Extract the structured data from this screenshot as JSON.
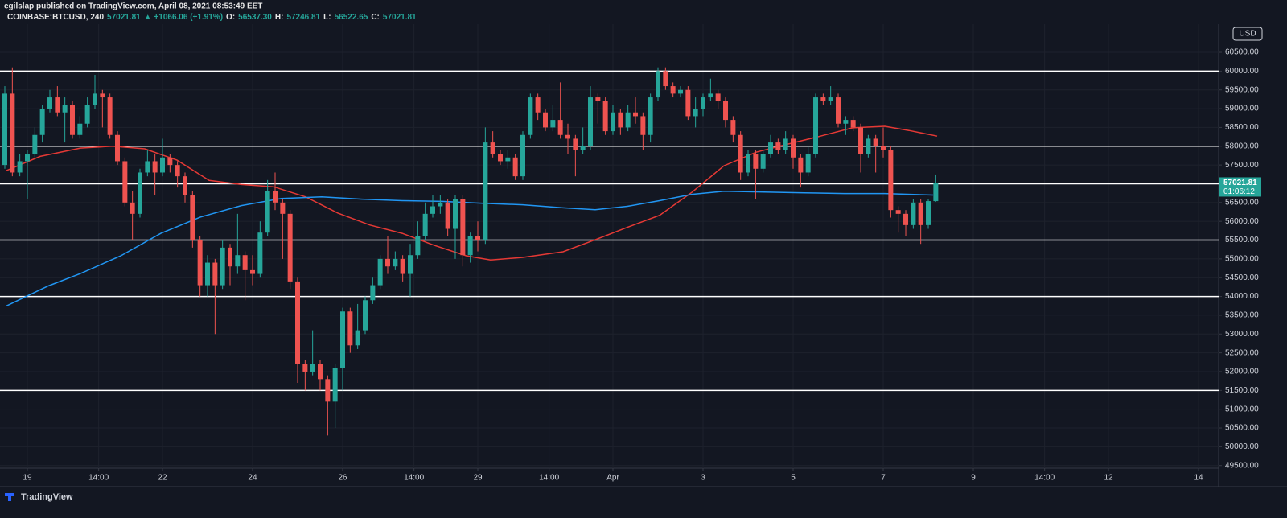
{
  "header": {
    "publisher": "egilslap published on TradingView.com, April 08, 2021 08:53:49 EET",
    "symbol": "COINBASE:BTCUSD, 240",
    "last": "57021.81",
    "change": "▲ +1066.06 (+1.91%)",
    "ohlc": [
      {
        "label": "O:",
        "value": "56537.30"
      },
      {
        "label": "H:",
        "value": "57246.81"
      },
      {
        "label": "L:",
        "value": "56522.65"
      },
      {
        "label": "C:",
        "value": "57021.81"
      }
    ]
  },
  "footer": {
    "brand": "TradingView"
  },
  "chart_data": {
    "type": "candlestick",
    "currency": "USD",
    "countdown": "01:06:12",
    "up_color": "#26a69a",
    "down_color": "#ef5350",
    "level_color": "#ffffff",
    "xlim": [
      18.393,
      45.446
    ],
    "ylim": [
      49430,
      61250
    ],
    "xticks": [
      19,
      {
        "value": 20.583,
        "label": "14:00"
      },
      22,
      24,
      26,
      {
        "value": 27.583,
        "label": "14:00"
      },
      29,
      {
        "value": 30.583,
        "label": "14:00"
      },
      {
        "value": 32,
        "label": "Apr"
      },
      {
        "value": 34,
        "label": "3"
      },
      {
        "value": 36,
        "label": "5"
      },
      {
        "value": 38,
        "label": "7"
      },
      {
        "value": 40,
        "label": "9"
      },
      {
        "value": 41.583,
        "label": "14:00"
      },
      {
        "value": 43,
        "label": "12"
      },
      {
        "value": 45,
        "label": "14"
      }
    ],
    "yticks": [
      {
        "value": 49500,
        "label": "49500.00"
      },
      {
        "value": 50000,
        "label": "50000.00"
      },
      {
        "value": 50500,
        "label": "50500.00"
      },
      {
        "value": 51000,
        "label": "51000.00"
      },
      {
        "value": 51500,
        "label": "51500.00"
      },
      {
        "value": 52000,
        "label": "52000.00"
      },
      {
        "value": 52500,
        "label": "52500.00"
      },
      {
        "value": 53000,
        "label": "53000.00"
      },
      {
        "value": 53500,
        "label": "53500.00"
      },
      {
        "value": 54000,
        "label": "54000.00"
      },
      {
        "value": 54500,
        "label": "54500.00"
      },
      {
        "value": 55000,
        "label": "55000.00"
      },
      {
        "value": 55500,
        "label": "55500.00"
      },
      {
        "value": 56000,
        "label": "56000.00"
      },
      {
        "value": 56500,
        "label": "56500.00"
      },
      {
        "value": 57000,
        "label": "57000.00"
      },
      {
        "value": 57500,
        "label": "57500.00"
      },
      {
        "value": 58000,
        "label": "58000.00"
      },
      {
        "value": 58500,
        "label": "58500.00"
      },
      {
        "value": 59000,
        "label": "59000.00"
      },
      {
        "value": 59500,
        "label": "59500.00"
      },
      {
        "value": 60000,
        "label": "60000.00"
      },
      {
        "value": 60500,
        "label": "60500.00"
      }
    ],
    "levels": [
      60000,
      58000,
      57000,
      55500,
      54000,
      51500
    ],
    "x": [
      18.5,
      18.667,
      18.833,
      19,
      19.167,
      19.333,
      19.5,
      19.667,
      19.833,
      20,
      20.167,
      20.333,
      20.5,
      20.667,
      20.833,
      21,
      21.167,
      21.333,
      21.5,
      21.667,
      21.833,
      22,
      22.167,
      22.333,
      22.5,
      22.667,
      22.833,
      23,
      23.167,
      23.333,
      23.5,
      23.667,
      23.833,
      24,
      24.167,
      24.333,
      24.5,
      24.667,
      24.833,
      25,
      25.167,
      25.333,
      25.5,
      25.667,
      25.833,
      26,
      26.167,
      26.333,
      26.5,
      26.667,
      26.833,
      27,
      27.167,
      27.333,
      27.5,
      27.667,
      27.833,
      28,
      28.167,
      28.333,
      28.5,
      28.667,
      28.833,
      29,
      29.167,
      29.333,
      29.5,
      29.667,
      29.833,
      30,
      30.167,
      30.333,
      30.5,
      30.667,
      30.833,
      31,
      31.167,
      31.333,
      31.5,
      31.667,
      31.833,
      32,
      32.167,
      32.333,
      32.5,
      32.667,
      32.833,
      33,
      33.167,
      33.333,
      33.5,
      33.667,
      33.833,
      34,
      34.167,
      34.333,
      34.5,
      34.667,
      34.833,
      35,
      35.167,
      35.333,
      35.5,
      35.667,
      35.833,
      36,
      36.167,
      36.333,
      36.5,
      36.667,
      36.833,
      37,
      37.167,
      37.333,
      37.5,
      37.667,
      37.833,
      38,
      38.167,
      38.333,
      38.5,
      38.667,
      38.833,
      39,
      39.167
    ],
    "open": [
      57500,
      59400,
      57300,
      57600,
      57800,
      58300,
      59000,
      59300,
      58900,
      59100,
      58300,
      58600,
      59100,
      59400,
      59300,
      58300,
      57600,
      56500,
      56200,
      57300,
      57600,
      57300,
      57700,
      57500,
      57200,
      56700,
      55500,
      54300,
      54900,
      54300,
      55300,
      54800,
      55100,
      54700,
      54600,
      55700,
      56800,
      56500,
      56200,
      54400,
      52200,
      52000,
      52200,
      51800,
      51200,
      52100,
      53600,
      52700,
      53100,
      53900,
      54300,
      55000,
      54800,
      55000,
      54600,
      55100,
      55600,
      56200,
      56400,
      56500,
      55800,
      56600,
      55100,
      55600,
      55500,
      58100,
      57800,
      57600,
      57700,
      57200,
      58300,
      59300,
      58900,
      58500,
      58700,
      58300,
      58200,
      57900,
      58000,
      59300,
      59200,
      58400,
      58900,
      58500,
      58900,
      58800,
      58300,
      59300,
      60000,
      59600,
      59400,
      59500,
      58800,
      59000,
      59300,
      59400,
      59200,
      58700,
      58300,
      57300,
      57800,
      57400,
      57800,
      58100,
      57900,
      58200,
      57700,
      57300,
      57800,
      59300,
      59200,
      59300,
      58600,
      58700,
      58500,
      57800,
      58200,
      58000,
      57900,
      56300,
      56200,
      55900,
      56500,
      55900,
      56537.3
    ],
    "high": [
      59600,
      60100,
      57800,
      57900,
      58500,
      59100,
      59500,
      59600,
      59300,
      59200,
      58800,
      59300,
      59900,
      59500,
      59400,
      58400,
      57700,
      56800,
      57400,
      57900,
      57800,
      58200,
      57800,
      57600,
      57300,
      56800,
      55600,
      55100,
      55000,
      55500,
      55400,
      56200,
      55200,
      55100,
      56000,
      57100,
      57300,
      56600,
      56300,
      54500,
      52300,
      53100,
      52300,
      51900,
      52200,
      53700,
      53700,
      53800,
      54000,
      54500,
      55100,
      55600,
      55200,
      55100,
      55400,
      56000,
      56500,
      56700,
      56700,
      56600,
      56700,
      56700,
      55700,
      56000,
      58500,
      58400,
      57900,
      57900,
      57800,
      58400,
      59400,
      59400,
      59000,
      59100,
      59700,
      58600,
      58300,
      58500,
      59600,
      59400,
      59300,
      59100,
      59000,
      59100,
      59300,
      58900,
      59400,
      60100,
      60100,
      59700,
      59600,
      59600,
      59300,
      59400,
      59800,
      59500,
      59300,
      58800,
      58400,
      57900,
      57900,
      57900,
      58300,
      58200,
      58400,
      58300,
      57800,
      58000,
      59400,
      59400,
      59600,
      59400,
      58800,
      58800,
      58600,
      58300,
      58300,
      58500,
      58000,
      56400,
      56300,
      56600,
      56600,
      56600,
      57246.81
    ],
    "low": [
      57400,
      57200,
      57200,
      56600,
      57700,
      58100,
      58900,
      58800,
      58100,
      58200,
      58200,
      58500,
      59000,
      58500,
      58200,
      57500,
      56400,
      55500,
      56100,
      57200,
      56700,
      57200,
      57300,
      56900,
      56500,
      55300,
      54000,
      54000,
      53000,
      54200,
      54300,
      54600,
      53900,
      54300,
      54500,
      55600,
      56300,
      55000,
      54200,
      51700,
      51500,
      51900,
      51500,
      50300,
      50500,
      51500,
      52500,
      52600,
      53000,
      53800,
      54200,
      54600,
      54700,
      54400,
      54000,
      55000,
      55500,
      56100,
      56200,
      55600,
      55000,
      54800,
      54900,
      55200,
      55400,
      57700,
      57500,
      57400,
      57100,
      57100,
      58200,
      58700,
      58400,
      58400,
      58200,
      57800,
      57200,
      57800,
      57900,
      58600,
      58300,
      58300,
      58300,
      58400,
      58600,
      57900,
      58100,
      59200,
      59500,
      59300,
      59300,
      58700,
      58500,
      58800,
      59200,
      59000,
      58500,
      58100,
      57100,
      57200,
      56600,
      57300,
      57700,
      57800,
      57800,
      57400,
      56900,
      57200,
      57700,
      59100,
      59100,
      58500,
      58300,
      58400,
      57300,
      57700,
      57300,
      57700,
      56100,
      55700,
      55600,
      55800,
      55400,
      55800,
      56522.65
    ],
    "close": [
      59400,
      57300,
      57600,
      57800,
      58300,
      59000,
      59300,
      58900,
      59100,
      58300,
      58600,
      59100,
      59400,
      59300,
      58300,
      57600,
      56500,
      56200,
      57300,
      57600,
      57300,
      57700,
      57500,
      57200,
      56700,
      55500,
      54300,
      54900,
      54300,
      55300,
      54800,
      55100,
      54700,
      54600,
      55700,
      56800,
      56500,
      56200,
      54400,
      52200,
      52000,
      52200,
      51800,
      51200,
      52100,
      53600,
      52700,
      53100,
      53900,
      54300,
      55000,
      54800,
      55000,
      54600,
      55100,
      55600,
      56200,
      56400,
      56500,
      55800,
      56600,
      55100,
      55600,
      55500,
      58100,
      57800,
      57600,
      57700,
      57200,
      58300,
      59300,
      58900,
      58500,
      58700,
      58300,
      58200,
      57900,
      58000,
      59300,
      59200,
      58400,
      58900,
      58500,
      58900,
      58800,
      58300,
      59300,
      60000,
      59600,
      59400,
      59500,
      58800,
      59000,
      59300,
      59400,
      59200,
      58700,
      58300,
      57300,
      57800,
      57400,
      57800,
      58100,
      57900,
      58200,
      57700,
      57300,
      57800,
      59300,
      59200,
      59300,
      58600,
      58700,
      58500,
      57800,
      58200,
      58000,
      57900,
      56300,
      56200,
      55900,
      56500,
      55900,
      56537.3,
      57021.81
    ],
    "moving_averages": [
      {
        "color": "#e53935",
        "x": [
          18.536,
          19.286,
          20.179,
          20.893,
          21.607,
          22.321,
          23.036,
          23.75,
          24.464,
          25.179,
          25.893,
          26.607,
          27.321,
          28.036,
          28.75,
          29.286,
          30,
          30.893,
          31.607,
          32.321,
          33.036,
          33.75,
          34.464,
          35.179,
          35.893,
          36.607,
          37.321,
          38.036,
          38.571,
          39.196
        ],
        "values": [
          57350,
          57730,
          57950,
          58000,
          57930,
          57630,
          57090,
          56980,
          56920,
          56650,
          56220,
          55900,
          55680,
          55360,
          55080,
          54970,
          55040,
          55190,
          55510,
          55840,
          56160,
          56770,
          57480,
          57840,
          58060,
          58270,
          58490,
          58530,
          58420,
          58270
        ]
      },
      {
        "color": "#2196f3",
        "x": [
          18.536,
          19.464,
          20.179,
          21.071,
          21.964,
          22.857,
          23.75,
          24.643,
          25.536,
          26.429,
          27.321,
          28.214,
          29.107,
          30,
          30.893,
          31.607,
          32.321,
          33.036,
          33.75,
          34.464,
          35.357,
          36.25,
          37.143,
          38.036,
          39.107
        ],
        "values": [
          53750,
          54280,
          54610,
          55080,
          55680,
          56120,
          56420,
          56610,
          56650,
          56590,
          56550,
          56530,
          56480,
          56440,
          56360,
          56310,
          56400,
          56550,
          56720,
          56800,
          56780,
          56760,
          56740,
          56740,
          56700
        ]
      }
    ]
  }
}
